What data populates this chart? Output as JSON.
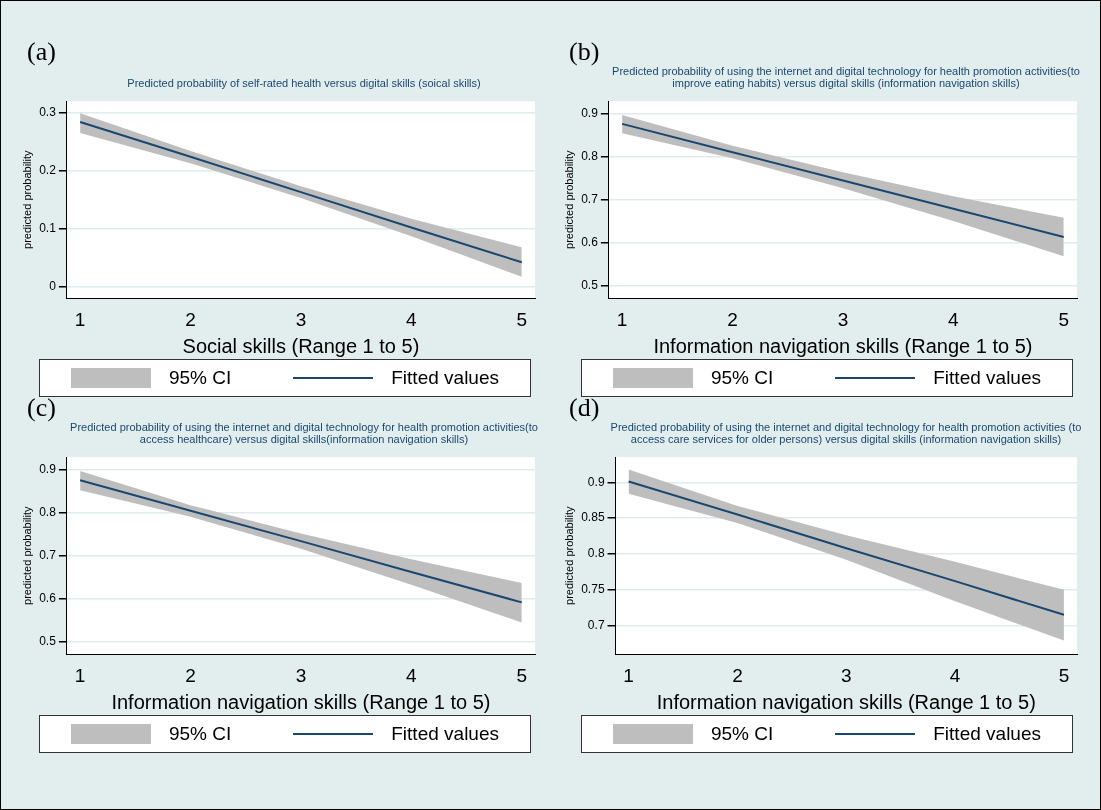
{
  "chart_data": [
    {
      "type": "line",
      "annotations": [
        "(a)"
      ],
      "title": "Predicted probability of self-rated health versus digital skills (soical skills)",
      "xlabel": "Social skills (Range 1 to 5)",
      "ylabel": "predicted probability",
      "x": [
        1,
        2,
        3,
        4,
        5
      ],
      "xlim": [
        0.88,
        5.12
      ],
      "xticks": [
        1,
        2,
        3,
        4,
        5
      ],
      "ylim": [
        -0.02,
        0.32
      ],
      "yticks": [
        0,
        0.1,
        0.2,
        0.3
      ],
      "grid": "y",
      "legend": "bottom",
      "series": [
        {
          "name": "95% CI",
          "type": "area",
          "color": "#bebebe",
          "values": [
            null,
            null,
            null,
            null,
            null
          ],
          "lower": [
            0.265,
            0.213,
            0.153,
            0.087,
            0.017
          ],
          "upper": [
            0.299,
            0.234,
            0.173,
            0.117,
            0.068
          ]
        },
        {
          "name": "Fitted values",
          "color": "#1a476f",
          "values": [
            0.284,
            0.224,
            0.163,
            0.102,
            0.042
          ]
        }
      ]
    },
    {
      "type": "line",
      "annotations": [
        "(b)"
      ],
      "title": "Predicted probability of using the internet and digital technology for health promotion activities(to improve eating habits) versus digital skills (information navigation skills)",
      "xlabel": "Information navigation skills (Range 1 to 5)",
      "ylabel": "predicted probability",
      "x": [
        1,
        2,
        3,
        4,
        5
      ],
      "xlim": [
        0.88,
        5.12
      ],
      "xticks": [
        1,
        2,
        3,
        4,
        5
      ],
      "ylim": [
        0.47,
        0.93
      ],
      "yticks": [
        0.5,
        0.6,
        0.7,
        0.8,
        0.9
      ],
      "grid": "y",
      "legend": "bottom",
      "series": [
        {
          "name": "95% CI",
          "type": "area",
          "color": "#bebebe",
          "values": [
            null,
            null,
            null,
            null,
            null
          ],
          "lower": [
            0.855,
            0.797,
            0.727,
            0.65,
            0.568
          ],
          "upper": [
            0.898,
            0.826,
            0.764,
            0.708,
            0.658
          ]
        },
        {
          "name": "Fitted values",
          "color": "#1a476f",
          "values": [
            0.877,
            0.811,
            0.745,
            0.679,
            0.613
          ]
        }
      ]
    },
    {
      "type": "line",
      "annotations": [
        "(c)"
      ],
      "title": "Predicted probability of using the internet and digital technology for health promotion activities(to access healthcare) versus digital skills(information navigation skills)",
      "xlabel": "Information navigation skills (Range 1 to 5)",
      "ylabel": "predicted probability",
      "x": [
        1,
        2,
        3,
        4,
        5
      ],
      "xlim": [
        0.88,
        5.12
      ],
      "xticks": [
        1,
        2,
        3,
        4,
        5
      ],
      "ylim": [
        0.47,
        0.93
      ],
      "yticks": [
        0.5,
        0.6,
        0.7,
        0.8,
        0.9
      ],
      "grid": "y",
      "legend": "bottom",
      "series": [
        {
          "name": "95% CI",
          "type": "area",
          "color": "#bebebe",
          "values": [
            null,
            null,
            null,
            null,
            null
          ],
          "lower": [
            0.853,
            0.791,
            0.716,
            0.632,
            0.544
          ],
          "upper": [
            0.898,
            0.818,
            0.752,
            0.692,
            0.636
          ]
        },
        {
          "name": "Fitted values",
          "color": "#1a476f",
          "values": [
            0.876,
            0.805,
            0.734,
            0.662,
            0.591
          ]
        }
      ]
    },
    {
      "type": "line",
      "annotations": [
        "(d)"
      ],
      "title": "Predicted probability of using the internet and digital technology for health promotion activities (to access care services for older persons) versus digital skills (information navigation skills)",
      "xlabel": "Information navigation skills (Range 1 to 5)",
      "ylabel": "predicted probability",
      "x": [
        1,
        2,
        3,
        4,
        5
      ],
      "xlim": [
        0.88,
        5.12
      ],
      "xticks": [
        1,
        2,
        3,
        4,
        5
      ],
      "ylim": [
        0.66,
        0.935
      ],
      "yticks": [
        0.7,
        0.75,
        0.8,
        0.85,
        0.9
      ],
      "grid": "y",
      "legend": "bottom",
      "series": [
        {
          "name": "95% CI",
          "type": "area",
          "color": "#bebebe",
          "values": [
            null,
            null,
            null,
            null,
            null
          ],
          "lower": [
            0.884,
            0.843,
            0.792,
            0.734,
            0.679
          ],
          "upper": [
            0.918,
            0.867,
            0.826,
            0.789,
            0.75
          ]
        },
        {
          "name": "Fitted values",
          "color": "#1a476f",
          "values": [
            0.901,
            0.855,
            0.808,
            0.762,
            0.715
          ]
        }
      ]
    }
  ]
}
